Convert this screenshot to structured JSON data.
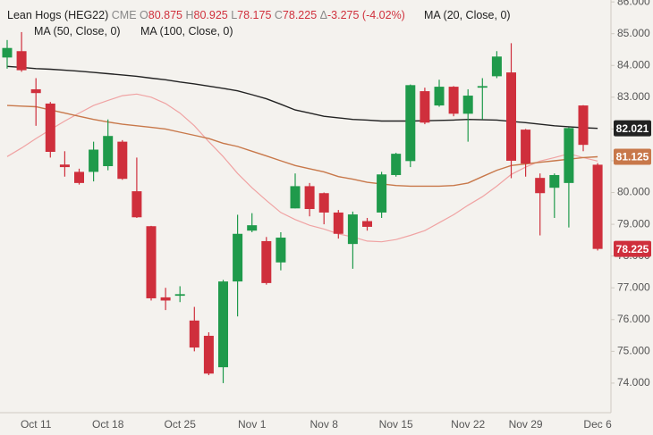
{
  "chart_data": {
    "type": "candlestick",
    "title": "Lean Hogs (HEG22)",
    "exchange": "CME",
    "ohlc_labels": [
      "O",
      "H",
      "L",
      "C",
      "Δ"
    ],
    "change": "-3.275 (-4.02%)",
    "categories": [
      null,
      null,
      "Oct 11",
      null,
      null,
      null,
      null,
      "Oct 18",
      null,
      null,
      null,
      null,
      "Oct 25",
      null,
      null,
      null,
      null,
      "Nov 1",
      null,
      null,
      null,
      null,
      "Nov 8",
      null,
      null,
      null,
      null,
      "Nov 15",
      null,
      null,
      null,
      null,
      "Nov 22",
      null,
      null,
      null,
      "Nov 29",
      null,
      null,
      null,
      null,
      "Dec 6"
    ],
    "open": [
      84.25,
      84.45,
      83.25,
      82.8,
      80.88,
      80.65,
      80.65,
      80.83,
      81.6,
      80.04,
      78.94,
      76.7,
      76.75,
      75.97,
      75.49,
      74.5,
      77.2,
      78.8,
      78.47,
      77.8,
      79.5,
      80.2,
      79.98,
      79.37,
      78.38,
      79.1,
      79.37,
      80.55,
      80.99,
      83.19,
      82.74,
      83.33,
      82.48,
      83.3,
      83.66,
      83.78,
      81.98,
      80.46,
      80.15,
      80.3,
      82.74,
      80.875
    ],
    "high": [
      84.8,
      85.05,
      83.6,
      82.85,
      81.3,
      80.75,
      81.6,
      82.3,
      81.65,
      81.1,
      78.95,
      77.0,
      77.05,
      76.4,
      75.6,
      77.25,
      79.3,
      79.35,
      78.6,
      78.75,
      80.6,
      80.3,
      80.0,
      79.45,
      79.4,
      79.2,
      80.65,
      81.25,
      83.4,
      83.3,
      83.55,
      83.35,
      83.25,
      83.6,
      84.45,
      84.7,
      82.0,
      80.6,
      80.6,
      82.05,
      82.75,
      80.925
    ],
    "low": [
      83.9,
      83.8,
      82.1,
      81.1,
      80.5,
      80.25,
      80.35,
      80.7,
      80.4,
      79.2,
      76.6,
      76.3,
      76.55,
      75.0,
      74.25,
      74.0,
      76.1,
      78.75,
      77.1,
      77.55,
      79.5,
      79.25,
      79.0,
      78.55,
      77.6,
      78.8,
      79.2,
      80.5,
      80.8,
      82.15,
      82.7,
      82.4,
      81.6,
      82.3,
      83.6,
      80.45,
      80.5,
      78.65,
      79.2,
      78.9,
      81.3,
      78.175
    ],
    "close": [
      84.55,
      83.85,
      83.13,
      81.28,
      80.8,
      80.3,
      81.35,
      81.78,
      80.43,
      79.22,
      76.67,
      76.6,
      76.8,
      75.12,
      74.3,
      77.2,
      78.7,
      78.97,
      77.15,
      78.58,
      80.2,
      79.48,
      79.37,
      78.7,
      79.31,
      78.92,
      80.57,
      81.22,
      83.38,
      82.2,
      83.33,
      82.48,
      83.05,
      83.35,
      84.28,
      81.0,
      80.91,
      79.98,
      80.55,
      82.03,
      81.5,
      78.225
    ],
    "up_color": "#1f9a4b",
    "down_color": "#cf2f3c",
    "series": [
      {
        "name": "MA (20, Close, 0)",
        "color": "#f0a3a3",
        "values": [
          81.13,
          81.4,
          81.7,
          81.98,
          82.25,
          82.5,
          82.74,
          82.9,
          83.05,
          83.1,
          83.0,
          82.8,
          82.5,
          82.1,
          81.6,
          81.13,
          80.6,
          80.15,
          79.75,
          79.37,
          79.15,
          78.97,
          78.85,
          78.7,
          78.6,
          78.47,
          78.45,
          78.52,
          78.65,
          78.8,
          79.05,
          79.3,
          79.6,
          79.87,
          80.2,
          80.57,
          80.8,
          80.99,
          81.1,
          81.22,
          81.1,
          80.99
        ]
      },
      {
        "name": "MA (50, Close, 0)",
        "color": "#c8784a",
        "values": [
          82.74,
          82.72,
          82.7,
          82.6,
          82.5,
          82.4,
          82.3,
          82.22,
          82.15,
          82.1,
          82.05,
          82.0,
          81.9,
          81.8,
          81.7,
          81.55,
          81.45,
          81.3,
          81.15,
          81.0,
          80.85,
          80.75,
          80.65,
          80.5,
          80.42,
          80.32,
          80.27,
          80.22,
          80.2,
          80.2,
          80.2,
          80.22,
          80.3,
          80.5,
          80.7,
          80.85,
          80.9,
          80.95,
          81.0,
          81.05,
          81.1,
          81.125
        ]
      },
      {
        "name": "MA (100, Close, 0)",
        "color": "#222222",
        "values": [
          83.97,
          83.94,
          83.9,
          83.88,
          83.85,
          83.82,
          83.78,
          83.74,
          83.7,
          83.66,
          83.6,
          83.55,
          83.48,
          83.42,
          83.35,
          83.28,
          83.2,
          83.08,
          82.95,
          82.78,
          82.6,
          82.5,
          82.4,
          82.35,
          82.3,
          82.28,
          82.25,
          82.25,
          82.25,
          82.26,
          82.27,
          82.28,
          82.3,
          82.29,
          82.28,
          82.24,
          82.2,
          82.15,
          82.1,
          82.07,
          82.04,
          82.021
        ]
      }
    ],
    "ylim": [
      73.07,
      86.06
    ],
    "yticks": [
      {
        "value": 74,
        "label": "74.000"
      },
      {
        "value": 75,
        "label": "75.000"
      },
      {
        "value": 76,
        "label": "76.000"
      },
      {
        "value": 77,
        "label": "77.000"
      },
      {
        "value": 78,
        "label": "78.000"
      },
      {
        "value": 79,
        "label": "79.000"
      },
      {
        "value": 80,
        "label": "80.000"
      },
      {
        "value": 81,
        "label": "81.000"
      },
      {
        "value": 82,
        "label": "82.000"
      },
      {
        "value": 83,
        "label": "83.000"
      },
      {
        "value": 84,
        "label": "84.000"
      },
      {
        "value": 85,
        "label": "85.000"
      },
      {
        "value": 86,
        "label": "86.000"
      }
    ],
    "y_axis_side": "right",
    "grid": false
  }
}
